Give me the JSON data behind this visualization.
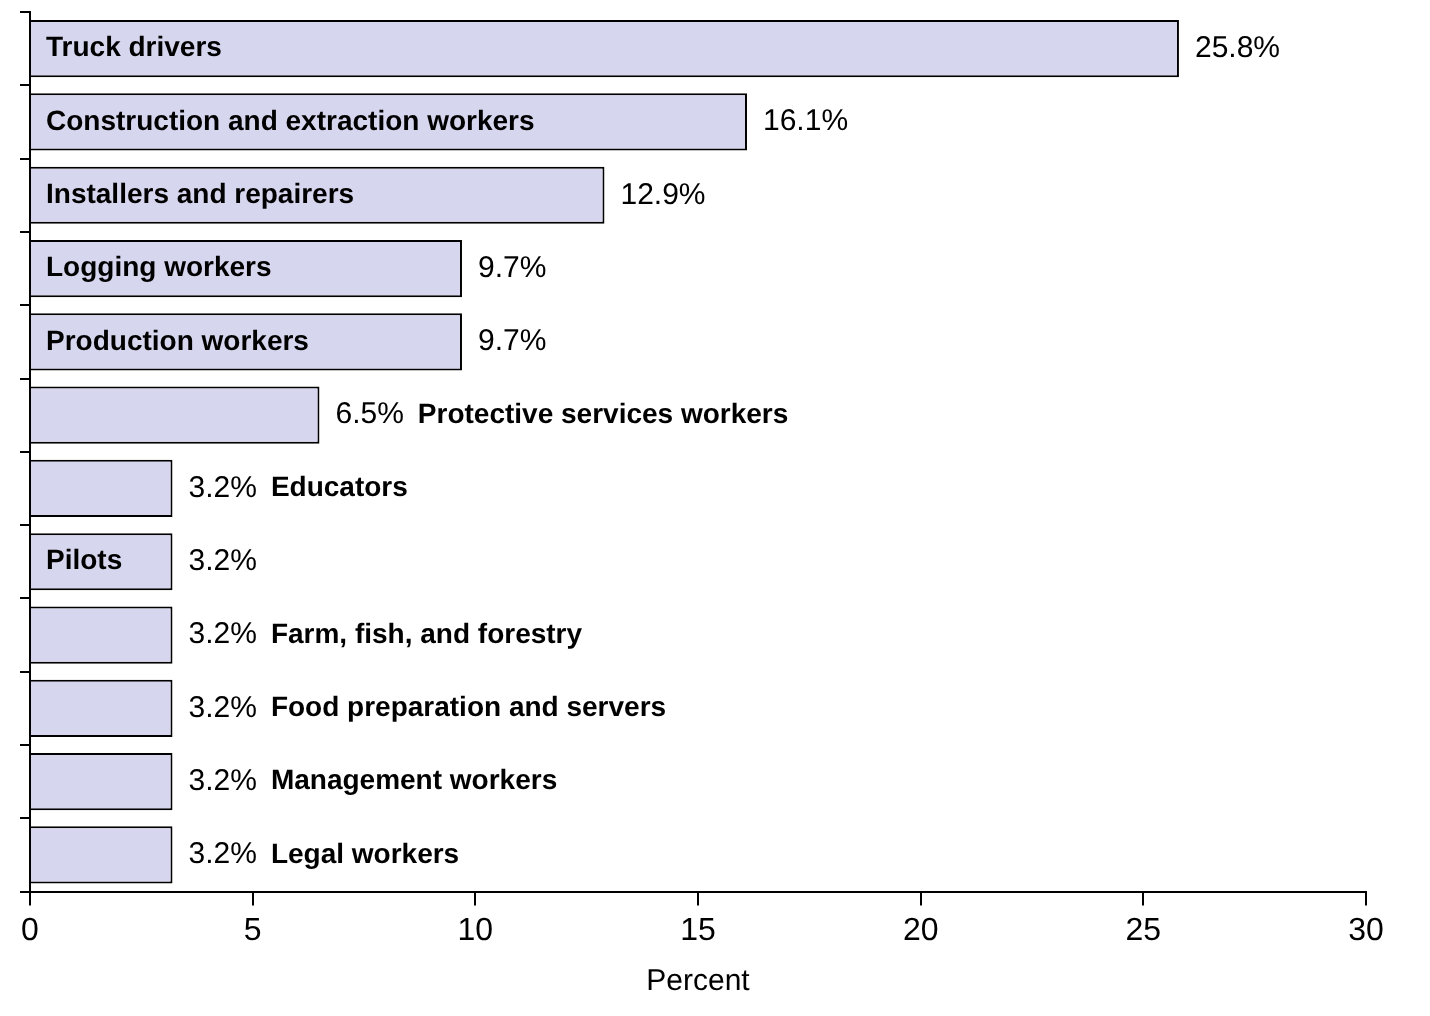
{
  "chart_data": {
    "type": "bar",
    "orientation": "horizontal",
    "xlabel": "Percent",
    "categories": [
      "Truck drivers",
      "Construction and extraction workers",
      "Installers and repairers",
      "Logging workers",
      "Production workers",
      "Protective services workers",
      "Educators",
      "Pilots",
      "Farm, fish, and forestry",
      "Food preparation and servers",
      "Management workers",
      "Legal workers"
    ],
    "values": [
      25.8,
      16.1,
      12.9,
      9.7,
      9.7,
      6.5,
      3.2,
      3.2,
      3.2,
      3.2,
      3.2,
      3.2
    ],
    "value_labels": [
      "25.8%",
      "16.1%",
      "12.9%",
      "9.7%",
      "9.7%",
      "6.5%",
      "3.2%",
      "3.2%",
      "3.2%",
      "3.2%",
      "3.2%",
      "3.2%"
    ],
    "color": "#d6d6ee",
    "xlim": [
      0,
      30
    ],
    "xticks": [
      0,
      5,
      10,
      15,
      20,
      25,
      30
    ],
    "tick_labels": "x",
    "grid": false,
    "legend": false
  }
}
